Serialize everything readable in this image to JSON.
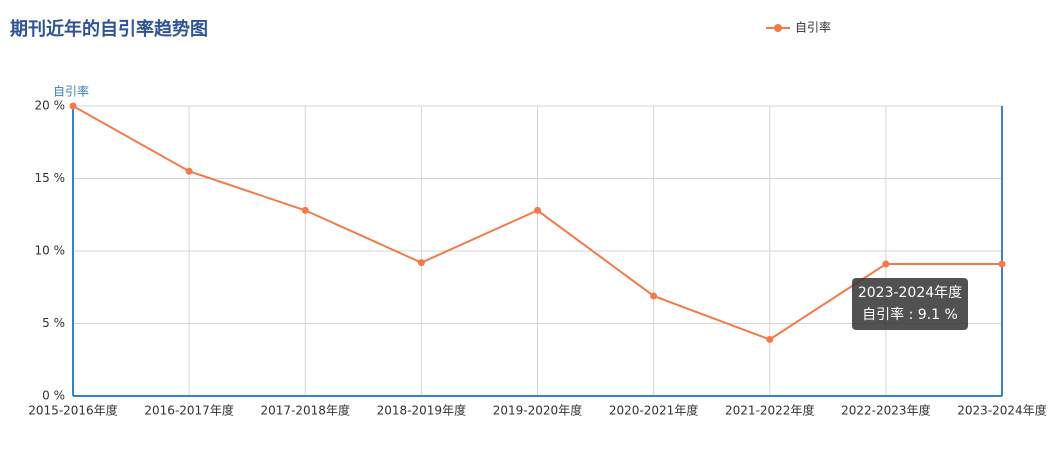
{
  "chart_data": {
    "type": "line",
    "title": "期刊近年的自引率趋势图",
    "y_label": "自引率",
    "categories": [
      "2015-2016年度",
      "2016-2017年度",
      "2017-2018年度",
      "2018-2019年度",
      "2019-2020年度",
      "2020-2021年度",
      "2021-2022年度",
      "2022-2023年度",
      "2023-2024年度"
    ],
    "series": [
      {
        "name": "自引率",
        "color": "#f37b4a",
        "values": [
          20.0,
          15.5,
          12.8,
          9.2,
          12.8,
          6.9,
          3.9,
          9.1,
          9.1
        ]
      }
    ],
    "ylim": [
      0,
      20
    ],
    "yticks": [
      {
        "value": 0,
        "label": "0 %"
      },
      {
        "value": 5,
        "label": "5 %"
      },
      {
        "value": 10,
        "label": "10 %"
      },
      {
        "value": 15,
        "label": "15 %"
      },
      {
        "value": 20,
        "label": "20 %"
      }
    ],
    "grid": true,
    "legend": "top",
    "tooltip": {
      "title": "2023-2024年度",
      "text": "自引率 : 9.1 %"
    }
  }
}
